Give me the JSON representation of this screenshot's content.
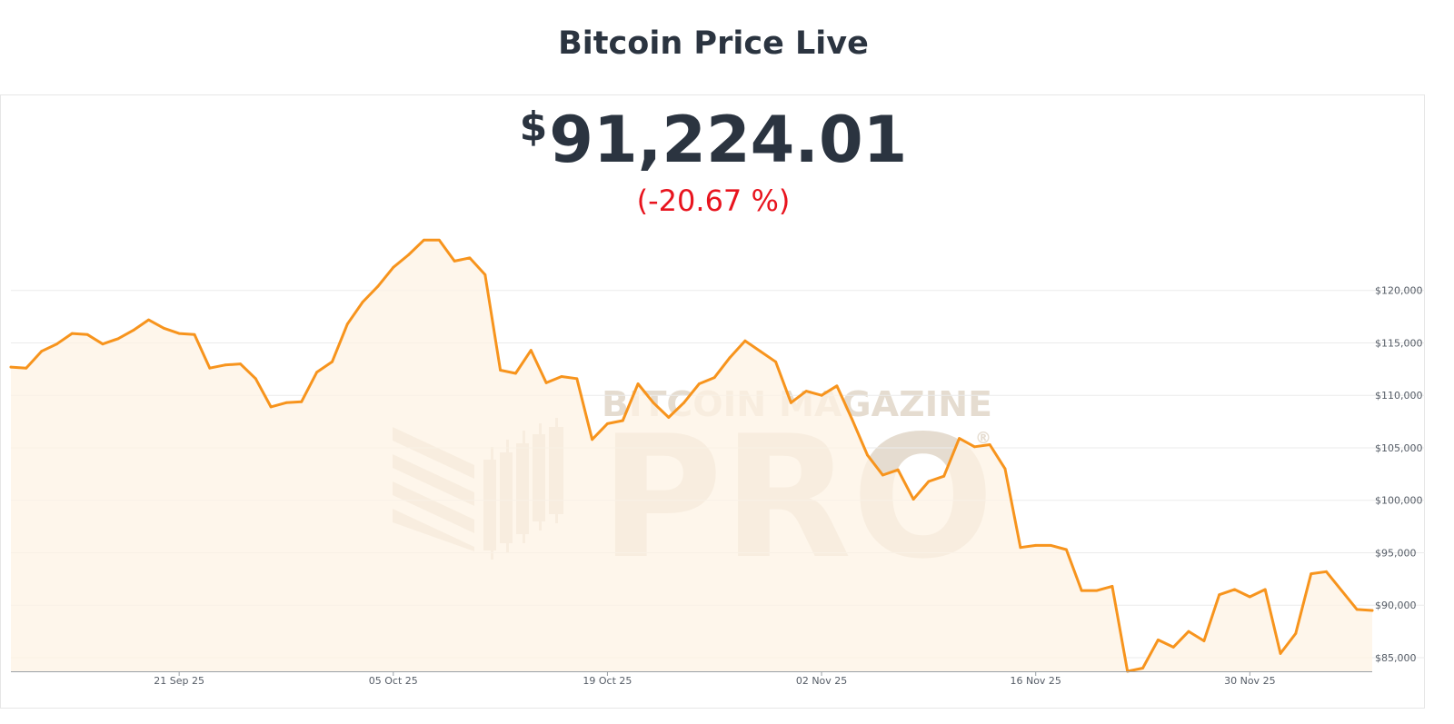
{
  "header": {
    "title": "Bitcoin Price Live"
  },
  "price": {
    "currency_symbol": "$",
    "value": "91,224.01",
    "change": "(-20.67 %)"
  },
  "watermark": {
    "top_text": "BITCOIN MAGAZINE",
    "main_text": "PRO",
    "mark": "®"
  },
  "colors": {
    "line": "#f7941d",
    "area": "#fdf3e4",
    "grid": "#ebebeb",
    "negative": "#e8141e",
    "text": "#2b3440"
  },
  "chart_data": {
    "type": "area",
    "title": "",
    "xlabel": "",
    "ylabel": "",
    "x_ticks": [
      {
        "date": "2025-09-21",
        "label": "21 Sep 25"
      },
      {
        "date": "2025-10-05",
        "label": "05 Oct 25"
      },
      {
        "date": "2025-10-19",
        "label": "19 Oct 25"
      },
      {
        "date": "2025-11-02",
        "label": "02 Nov 25"
      },
      {
        "date": "2025-11-16",
        "label": "16 Nov 25"
      },
      {
        "date": "2025-11-30",
        "label": "30 Nov 25"
      }
    ],
    "y_ticks": [
      {
        "value": 85000,
        "label": "$85,000"
      },
      {
        "value": 90000,
        "label": "$90,000"
      },
      {
        "value": 95000,
        "label": "$95,000"
      },
      {
        "value": 100000,
        "label": "$100,000"
      },
      {
        "value": 105000,
        "label": "$105,000"
      },
      {
        "value": 110000,
        "label": "$110,000"
      },
      {
        "value": 115000,
        "label": "$115,000"
      },
      {
        "value": 120000,
        "label": "$120,000"
      }
    ],
    "xlim": [
      "2025-09-10",
      "2025-12-08"
    ],
    "ylim": [
      83700,
      125000
    ],
    "grid": true,
    "legend": "none",
    "series": [
      {
        "points": [
          [
            "2025-09-10",
            112700
          ],
          [
            "2025-09-11",
            112600
          ],
          [
            "2025-09-12",
            114200
          ],
          [
            "2025-09-13",
            114900
          ],
          [
            "2025-09-14",
            115900
          ],
          [
            "2025-09-15",
            115800
          ],
          [
            "2025-09-16",
            114900
          ],
          [
            "2025-09-17",
            115400
          ],
          [
            "2025-09-18",
            116200
          ],
          [
            "2025-09-19",
            117200
          ],
          [
            "2025-09-20",
            116400
          ],
          [
            "2025-09-21",
            115900
          ],
          [
            "2025-09-22",
            115800
          ],
          [
            "2025-09-23",
            112600
          ],
          [
            "2025-09-24",
            112900
          ],
          [
            "2025-09-25",
            113000
          ],
          [
            "2025-09-26",
            111600
          ],
          [
            "2025-09-27",
            108900
          ],
          [
            "2025-09-28",
            109300
          ],
          [
            "2025-09-29",
            109400
          ],
          [
            "2025-09-30",
            112200
          ],
          [
            "2025-10-01",
            113200
          ],
          [
            "2025-10-02",
            116800
          ],
          [
            "2025-10-03",
            118900
          ],
          [
            "2025-10-04",
            120400
          ],
          [
            "2025-10-05",
            122200
          ],
          [
            "2025-10-06",
            123400
          ],
          [
            "2025-10-07",
            124800
          ],
          [
            "2025-10-08",
            124800
          ],
          [
            "2025-10-09",
            122800
          ],
          [
            "2025-10-10",
            123100
          ],
          [
            "2025-10-11",
            121500
          ],
          [
            "2025-10-12",
            112400
          ],
          [
            "2025-10-13",
            112100
          ],
          [
            "2025-10-14",
            114300
          ],
          [
            "2025-10-15",
            111200
          ],
          [
            "2025-10-16",
            111800
          ],
          [
            "2025-10-17",
            111600
          ],
          [
            "2025-10-18",
            105800
          ],
          [
            "2025-10-19",
            107300
          ],
          [
            "2025-10-20",
            107600
          ],
          [
            "2025-10-21",
            111100
          ],
          [
            "2025-10-22",
            109300
          ],
          [
            "2025-10-23",
            107900
          ],
          [
            "2025-10-24",
            109300
          ],
          [
            "2025-10-25",
            111100
          ],
          [
            "2025-10-26",
            111700
          ],
          [
            "2025-10-27",
            113600
          ],
          [
            "2025-10-28",
            115200
          ],
          [
            "2025-10-29",
            114200
          ],
          [
            "2025-10-30",
            113200
          ],
          [
            "2025-10-31",
            109300
          ],
          [
            "2025-11-01",
            110400
          ],
          [
            "2025-11-02",
            110000
          ],
          [
            "2025-11-03",
            110900
          ],
          [
            "2025-11-04",
            107700
          ],
          [
            "2025-11-05",
            104300
          ],
          [
            "2025-11-06",
            102400
          ],
          [
            "2025-11-07",
            102900
          ],
          [
            "2025-11-08",
            100100
          ],
          [
            "2025-11-09",
            101800
          ],
          [
            "2025-11-10",
            102300
          ],
          [
            "2025-11-11",
            105900
          ],
          [
            "2025-11-12",
            105100
          ],
          [
            "2025-11-13",
            105300
          ],
          [
            "2025-11-14",
            103000
          ],
          [
            "2025-11-15",
            95500
          ],
          [
            "2025-11-16",
            95700
          ],
          [
            "2025-11-17",
            95700
          ],
          [
            "2025-11-18",
            95300
          ],
          [
            "2025-11-19",
            91400
          ],
          [
            "2025-11-20",
            91400
          ],
          [
            "2025-11-21",
            91800
          ],
          [
            "2025-11-22",
            83700
          ],
          [
            "2025-11-23",
            84000
          ],
          [
            "2025-11-24",
            86700
          ],
          [
            "2025-11-25",
            86000
          ],
          [
            "2025-11-26",
            87500
          ],
          [
            "2025-11-27",
            86600
          ],
          [
            "2025-11-28",
            91000
          ],
          [
            "2025-11-29",
            91500
          ],
          [
            "2025-11-30",
            90800
          ],
          [
            "2025-12-01",
            91500
          ],
          [
            "2025-12-02",
            85400
          ],
          [
            "2025-12-03",
            87300
          ],
          [
            "2025-12-04",
            93000
          ],
          [
            "2025-12-05",
            93200
          ],
          [
            "2025-12-06",
            91400
          ],
          [
            "2025-12-07",
            89600
          ],
          [
            "2025-12-08",
            89500
          ]
        ]
      }
    ]
  }
}
